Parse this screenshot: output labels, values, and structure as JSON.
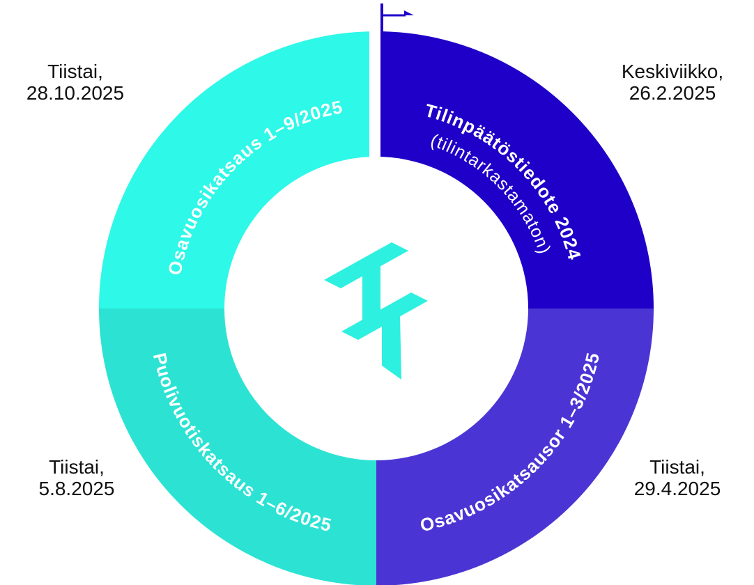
{
  "segments": [
    {
      "label": "Tilinpäätöstiedote 2024",
      "sublabel": "(tilintarkastamaton)",
      "date": [
        "Keskiviikko,",
        "26.2.2025"
      ]
    },
    {
      "label": "Osavuosikatsausor 1–3/2025",
      "date": [
        "Tiistai,",
        "29.4.2025"
      ]
    },
    {
      "label": "Puolivuotiskatsaus 1–6/2025",
      "date": [
        "Tiistai,",
        "5.8.2025"
      ]
    },
    {
      "label": "Osavuosikatsaus 1–9/2025",
      "date": [
        "Tiistai,",
        "28.10.2025"
      ]
    }
  ]
}
